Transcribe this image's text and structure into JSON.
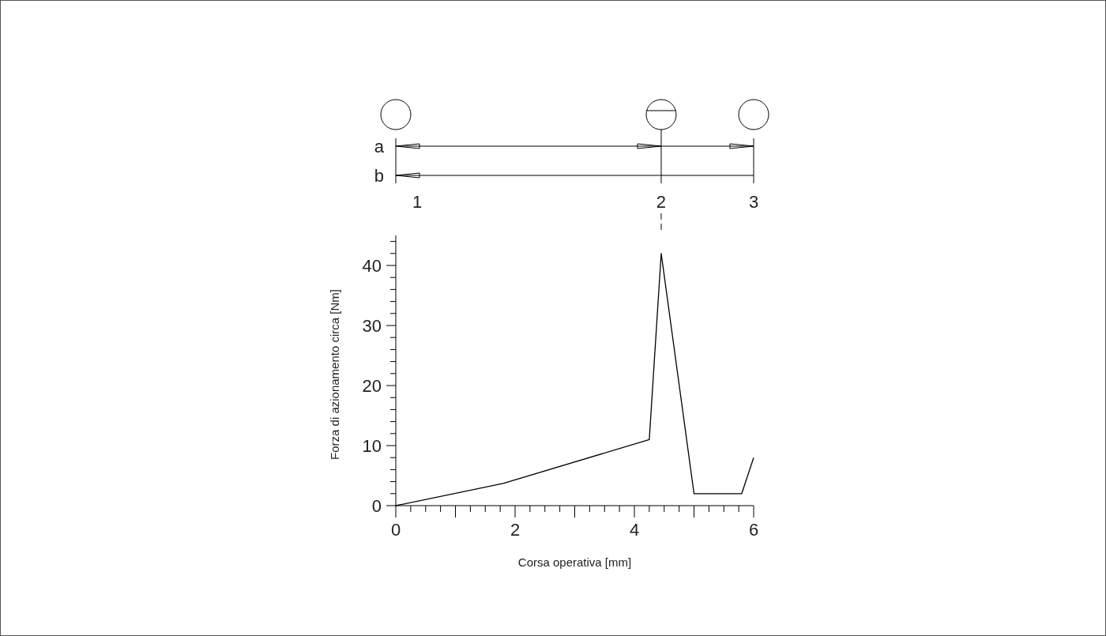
{
  "chart_data": {
    "type": "line",
    "xlabel": "Corsa operativa [mm]",
    "ylabel": "Forza di azionamento circa [Nm]",
    "x": [
      0,
      1.8,
      4.25,
      4.45,
      5,
      5.8,
      6
    ],
    "series": [
      {
        "color": "#000000",
        "values": [
          0,
          3.7,
          11,
          42,
          2,
          2,
          8
        ]
      }
    ],
    "xlim": [
      0,
      6
    ],
    "ylim": [
      0,
      45
    ],
    "xticks": [
      0,
      {
        "value": 0.25,
        "label": null
      },
      {
        "value": 0.5,
        "label": null
      },
      {
        "value": 0.75,
        "label": null
      },
      {
        "value": 1,
        "label": null
      },
      {
        "value": 1.25,
        "label": null
      },
      {
        "value": 1.5,
        "label": null
      },
      {
        "value": 1.75,
        "label": null
      },
      2,
      {
        "value": 2.25,
        "label": null
      },
      {
        "value": 2.5,
        "label": null
      },
      {
        "value": 2.75,
        "label": null
      },
      {
        "value": 3,
        "label": null
      },
      {
        "value": 3.25,
        "label": null
      },
      {
        "value": 3.5,
        "label": null
      },
      {
        "value": 3.75,
        "label": null
      },
      4,
      {
        "value": 4.25,
        "label": null
      },
      {
        "value": 4.5,
        "label": null
      },
      {
        "value": 4.75,
        "label": null
      },
      {
        "value": 5,
        "label": null
      },
      {
        "value": 5.25,
        "label": null
      },
      {
        "value": 5.5,
        "label": null
      },
      {
        "value": 5.75,
        "label": null
      },
      6
    ],
    "yticks": [
      0,
      {
        "value": 2,
        "label": null
      },
      {
        "value": 4,
        "label": null
      },
      {
        "value": 6,
        "label": null
      },
      {
        "value": 8,
        "label": null
      },
      10,
      {
        "value": 12,
        "label": null
      },
      {
        "value": 14,
        "label": null
      },
      {
        "value": 16,
        "label": null
      },
      {
        "value": 18,
        "label": null
      },
      20,
      {
        "value": 22,
        "label": null
      },
      {
        "value": 24,
        "label": null
      },
      {
        "value": 26,
        "label": null
      },
      {
        "value": 28,
        "label": null
      },
      30,
      {
        "value": 32,
        "label": null
      },
      {
        "value": 34,
        "label": null
      },
      {
        "value": 36,
        "label": null
      },
      {
        "value": 38,
        "label": null
      },
      40,
      {
        "value": 42,
        "label": null
      },
      {
        "value": 44,
        "label": null
      }
    ],
    "annotations": [
      "a",
      "b",
      "1",
      "2",
      "3"
    ],
    "grid": false,
    "marker": "none",
    "line_style": "solid"
  }
}
